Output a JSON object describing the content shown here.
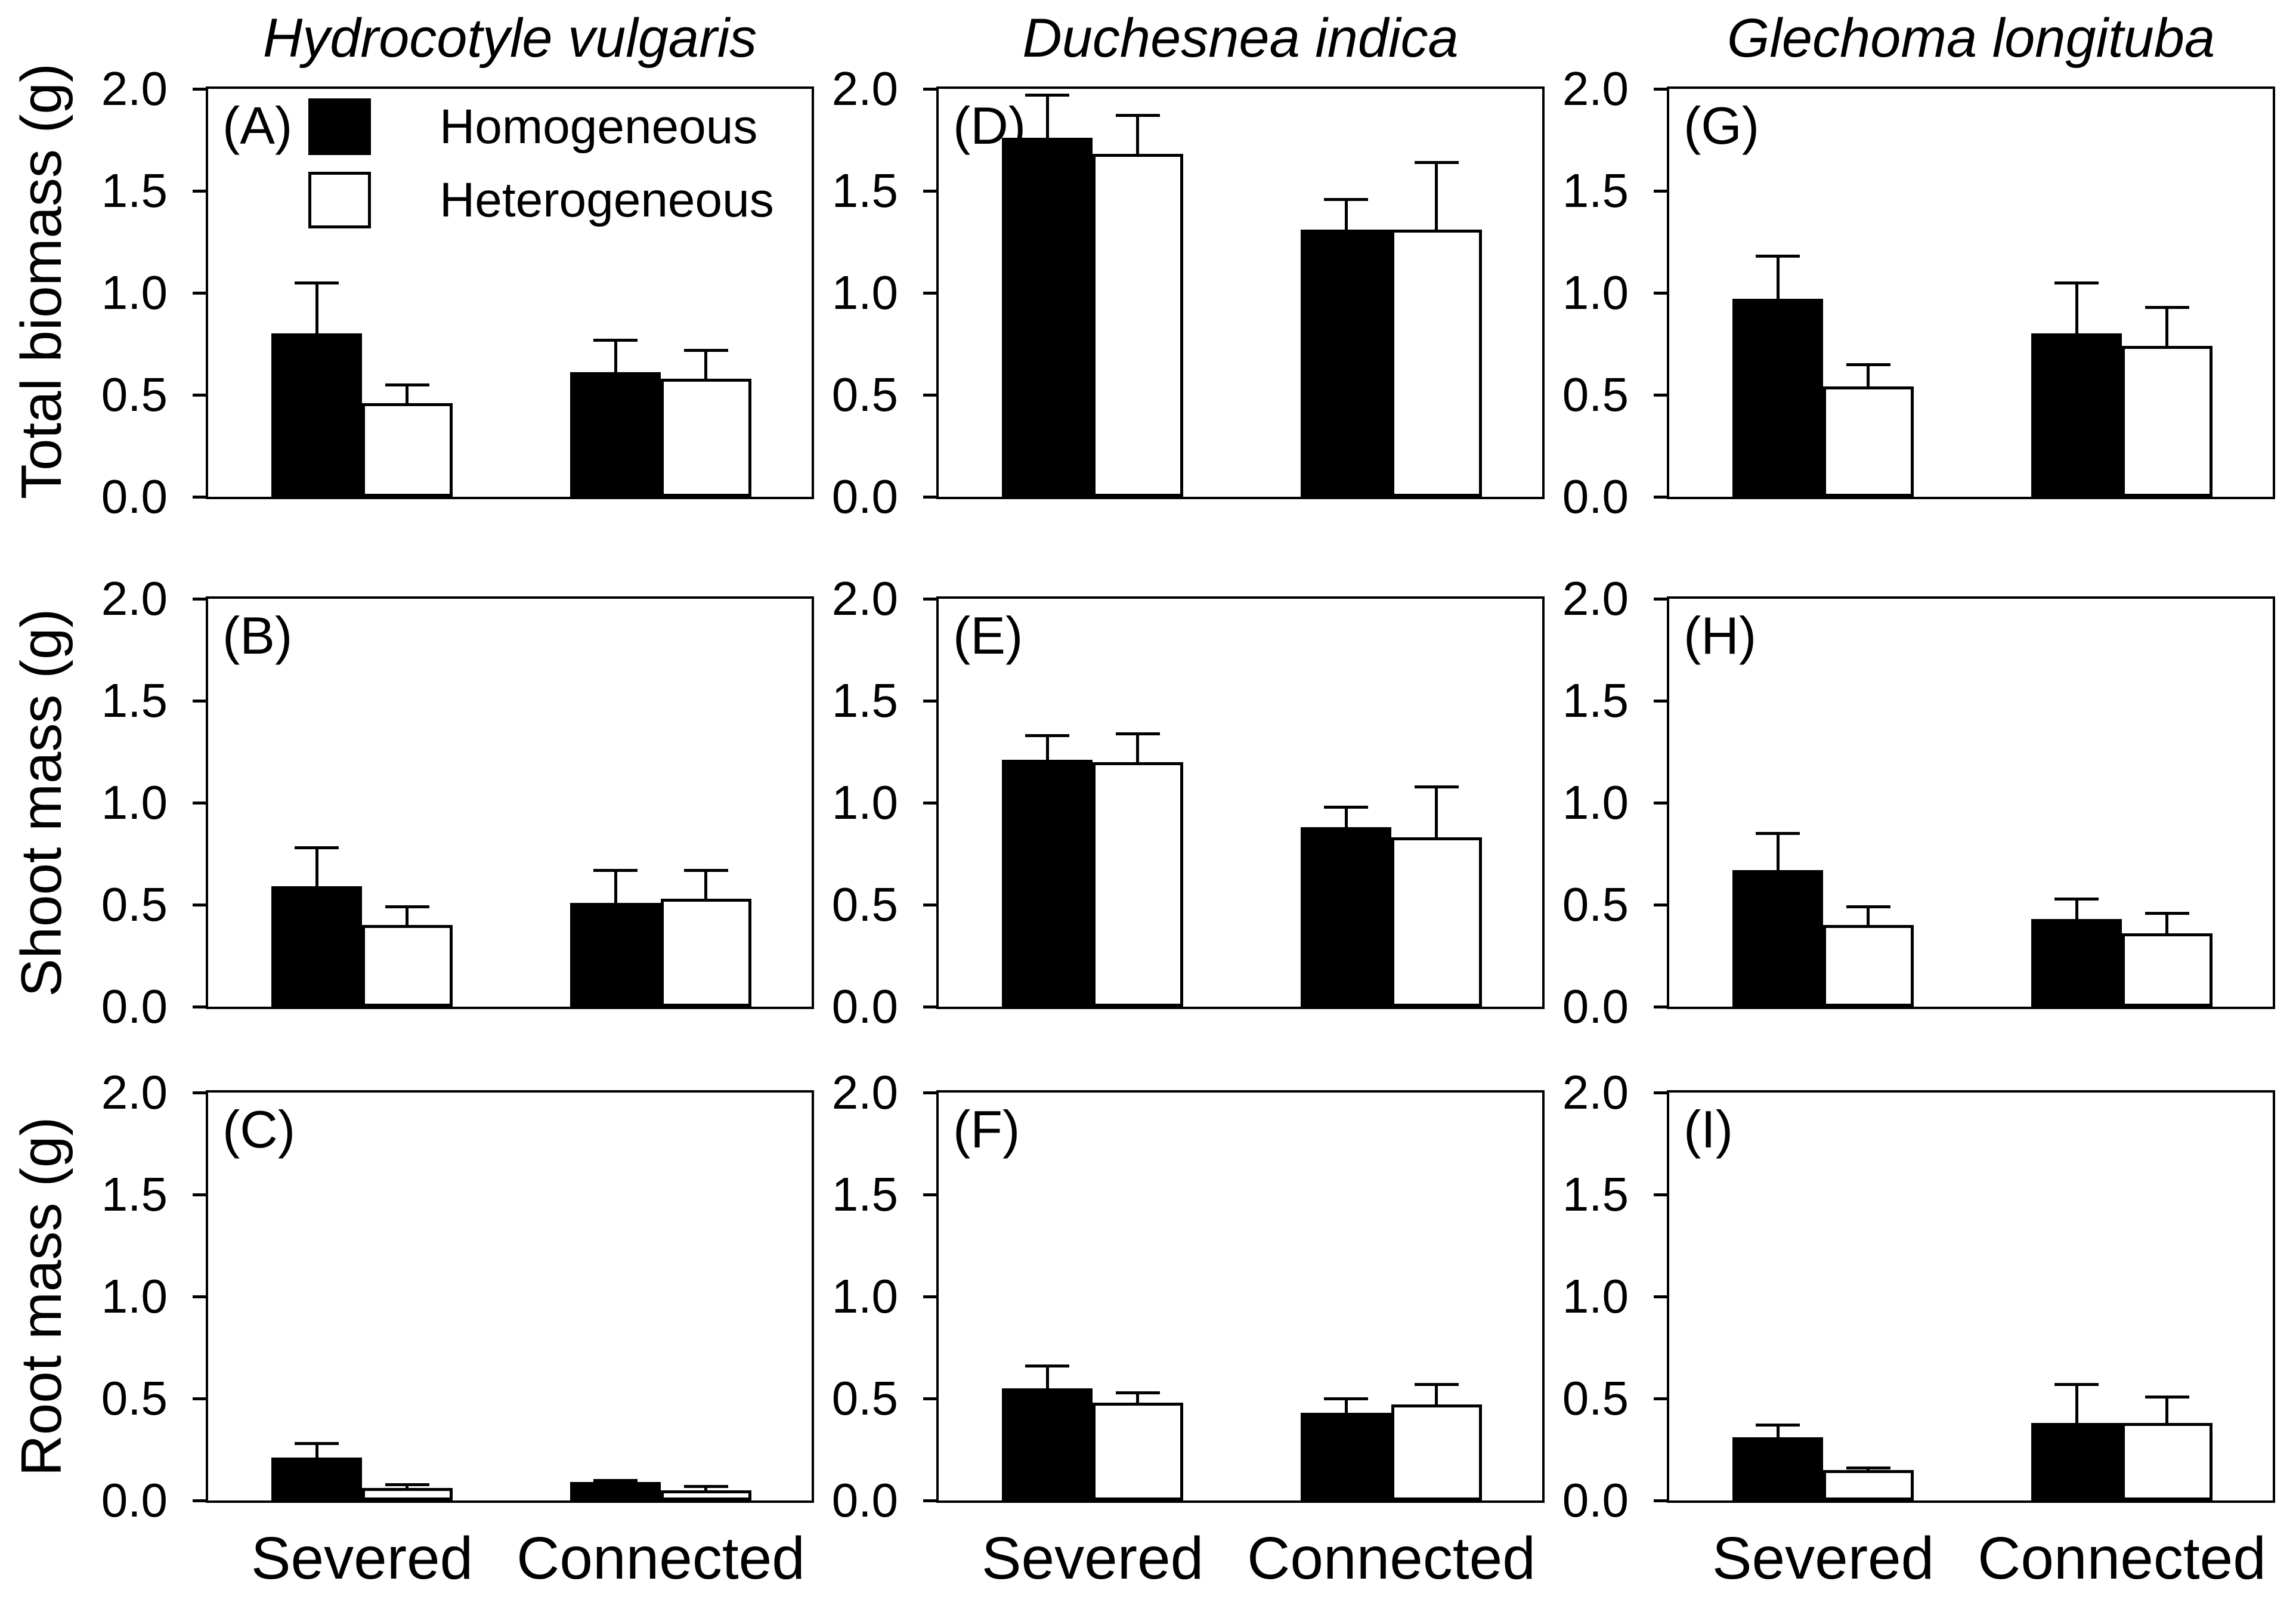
{
  "figure": {
    "background": "#ffffff",
    "column_titles": [
      "Hydrocotyle vulgaris",
      "Duchesnea indica",
      "Glechoma longituba"
    ],
    "row_labels": [
      "Total biomass (g)",
      "Shoot mass (g)",
      "Root mass (g)"
    ],
    "x_category_labels": [
      "Severed",
      "Connected"
    ],
    "colors": {
      "homogeneous_fill": "#000000",
      "heterogeneous_fill": "#ffffff",
      "outline": "#000000",
      "background": "#ffffff"
    }
  },
  "legend": {
    "position": "top-left of panel A",
    "items": [
      {
        "label": "Homogeneous",
        "swatch": "black"
      },
      {
        "label": "Heterogeneous",
        "swatch": "white"
      }
    ]
  },
  "chart_data": [
    {
      "type": "bar",
      "id": "A",
      "label": "(A)",
      "row_quantity": "Total biomass (g)",
      "species": "Hydrocotyle vulgaris",
      "categories": [
        "Severed",
        "Connected"
      ],
      "ylim": [
        0,
        2.0
      ],
      "yticks": [
        "0.0",
        "0.5",
        "1.0",
        "1.5",
        "2.0"
      ],
      "series": [
        {
          "name": "Homogeneous",
          "values": [
            0.8,
            0.61
          ],
          "errors": [
            0.25,
            0.16
          ]
        },
        {
          "name": "Heterogeneous",
          "values": [
            0.46,
            0.58
          ],
          "errors": [
            0.09,
            0.14
          ]
        }
      ],
      "show_x_labels": false,
      "show_legend": true
    },
    {
      "type": "bar",
      "id": "D",
      "label": "(D)",
      "row_quantity": "Total biomass (g)",
      "species": "Duchesnea indica",
      "categories": [
        "Severed",
        "Connected"
      ],
      "ylim": [
        0,
        2.0
      ],
      "yticks": [
        "0.0",
        "0.5",
        "1.0",
        "1.5",
        "2.0"
      ],
      "series": [
        {
          "name": "Homogeneous",
          "values": [
            1.76,
            1.31
          ],
          "errors": [
            0.21,
            0.15
          ]
        },
        {
          "name": "Heterogeneous",
          "values": [
            1.68,
            1.31
          ],
          "errors": [
            0.19,
            0.33
          ]
        }
      ],
      "show_x_labels": false,
      "show_legend": false
    },
    {
      "type": "bar",
      "id": "G",
      "label": "(G)",
      "row_quantity": "Total biomass (g)",
      "species": "Glechoma longituba",
      "categories": [
        "Severed",
        "Connected"
      ],
      "ylim": [
        0,
        2.0
      ],
      "yticks": [
        "0.0",
        "0.5",
        "1.0",
        "1.5",
        "2.0"
      ],
      "series": [
        {
          "name": "Homogeneous",
          "values": [
            0.97,
            0.8
          ],
          "errors": [
            0.21,
            0.25
          ]
        },
        {
          "name": "Heterogeneous",
          "values": [
            0.54,
            0.74
          ],
          "errors": [
            0.11,
            0.19
          ]
        }
      ],
      "show_x_labels": false,
      "show_legend": false
    },
    {
      "type": "bar",
      "id": "B",
      "label": "(B)",
      "row_quantity": "Shoot mass (g)",
      "species": "Hydrocotyle vulgaris",
      "categories": [
        "Severed",
        "Connected"
      ],
      "ylim": [
        0,
        2.0
      ],
      "yticks": [
        "0.0",
        "0.5",
        "1.0",
        "1.5",
        "2.0"
      ],
      "series": [
        {
          "name": "Homogeneous",
          "values": [
            0.59,
            0.51
          ],
          "errors": [
            0.19,
            0.16
          ]
        },
        {
          "name": "Heterogeneous",
          "values": [
            0.4,
            0.53
          ],
          "errors": [
            0.09,
            0.14
          ]
        }
      ],
      "show_x_labels": false,
      "show_legend": false
    },
    {
      "type": "bar",
      "id": "E",
      "label": "(E)",
      "row_quantity": "Shoot mass (g)",
      "species": "Duchesnea indica",
      "categories": [
        "Severed",
        "Connected"
      ],
      "ylim": [
        0,
        2.0
      ],
      "yticks": [
        "0.0",
        "0.5",
        "1.0",
        "1.5",
        "2.0"
      ],
      "series": [
        {
          "name": "Homogeneous",
          "values": [
            1.21,
            0.88
          ],
          "errors": [
            0.12,
            0.1
          ]
        },
        {
          "name": "Heterogeneous",
          "values": [
            1.2,
            0.83
          ],
          "errors": [
            0.14,
            0.25
          ]
        }
      ],
      "show_x_labels": false,
      "show_legend": false
    },
    {
      "type": "bar",
      "id": "H",
      "label": "(H)",
      "row_quantity": "Shoot mass (g)",
      "species": "Glechoma longituba",
      "categories": [
        "Severed",
        "Connected"
      ],
      "ylim": [
        0,
        2.0
      ],
      "yticks": [
        "0.0",
        "0.5",
        "1.0",
        "1.5",
        "2.0"
      ],
      "series": [
        {
          "name": "Homogeneous",
          "values": [
            0.67,
            0.43
          ],
          "errors": [
            0.18,
            0.1
          ]
        },
        {
          "name": "Heterogeneous",
          "values": [
            0.4,
            0.36
          ],
          "errors": [
            0.09,
            0.1
          ]
        }
      ],
      "show_x_labels": false,
      "show_legend": false
    },
    {
      "type": "bar",
      "id": "C",
      "label": "(C)",
      "row_quantity": "Root mass (g)",
      "species": "Hydrocotyle vulgaris",
      "categories": [
        "Severed",
        "Connected"
      ],
      "ylim": [
        0,
        2.0
      ],
      "yticks": [
        "0.0",
        "0.5",
        "1.0",
        "1.5",
        "2.0"
      ],
      "series": [
        {
          "name": "Homogeneous",
          "values": [
            0.21,
            0.09
          ],
          "errors": [
            0.07,
            0.01
          ]
        },
        {
          "name": "Heterogeneous",
          "values": [
            0.06,
            0.05
          ],
          "errors": [
            0.02,
            0.02
          ]
        }
      ],
      "show_x_labels": true,
      "show_legend": false
    },
    {
      "type": "bar",
      "id": "F",
      "label": "(F)",
      "row_quantity": "Root mass (g)",
      "species": "Duchesnea indica",
      "categories": [
        "Severed",
        "Connected"
      ],
      "ylim": [
        0,
        2.0
      ],
      "yticks": [
        "0.0",
        "0.5",
        "1.0",
        "1.5",
        "2.0"
      ],
      "series": [
        {
          "name": "Homogeneous",
          "values": [
            0.55,
            0.43
          ],
          "errors": [
            0.11,
            0.07
          ]
        },
        {
          "name": "Heterogeneous",
          "values": [
            0.48,
            0.47
          ],
          "errors": [
            0.05,
            0.1
          ]
        }
      ],
      "show_x_labels": true,
      "show_legend": false
    },
    {
      "type": "bar",
      "id": "I",
      "label": "(I)",
      "row_quantity": "Root mass (g)",
      "species": "Glechoma longituba",
      "categories": [
        "Severed",
        "Connected"
      ],
      "ylim": [
        0,
        2.0
      ],
      "yticks": [
        "0.0",
        "0.5",
        "1.0",
        "1.5",
        "2.0"
      ],
      "series": [
        {
          "name": "Homogeneous",
          "values": [
            0.31,
            0.38
          ],
          "errors": [
            0.06,
            0.19
          ]
        },
        {
          "name": "Heterogeneous",
          "values": [
            0.15,
            0.38
          ],
          "errors": [
            0.01,
            0.13
          ]
        }
      ],
      "show_x_labels": true,
      "show_legend": false
    }
  ]
}
